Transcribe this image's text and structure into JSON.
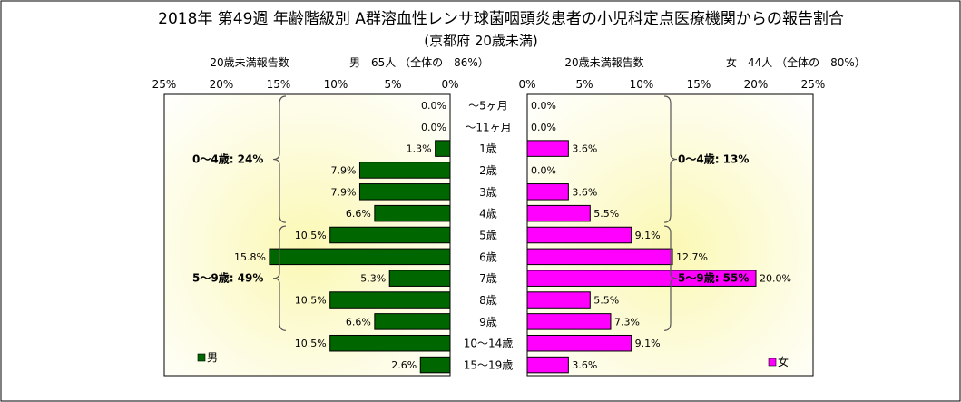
{
  "title": "2018年 第49週 年齢階級別 A群溶血性レンサ球菌咽頭炎患者の小児科定点医療機関からの報告割合",
  "subtitle": "(京都府 20歳未満)",
  "chart_data": {
    "type": "bar",
    "categories": [
      "〜5ヶ月",
      "〜11ヶ月",
      "1歳",
      "2歳",
      "3歳",
      "4歳",
      "5歳",
      "6歳",
      "7歳",
      "8歳",
      "9歳",
      "10〜14歳",
      "15〜19歳"
    ],
    "x_ticks": [
      "25%",
      "20%",
      "15%",
      "10%",
      "5%",
      "0%"
    ],
    "x_ticks_right": [
      "0%",
      "5%",
      "10%",
      "15%",
      "20%",
      "25%"
    ],
    "xlim": [
      0,
      25
    ],
    "series": [
      {
        "name": "男",
        "color": "#006600",
        "values": [
          0.0,
          0.0,
          1.3,
          7.9,
          7.9,
          6.6,
          10.5,
          15.8,
          5.3,
          10.5,
          6.6,
          10.5,
          2.6
        ],
        "labels": [
          "0.0%",
          "0.0%",
          "1.3%",
          "7.9%",
          "7.9%",
          "6.6%",
          "10.5%",
          "15.8%",
          "5.3%",
          "10.5%",
          "6.6%",
          "10.5%",
          "2.6%"
        ],
        "header_left": "20歳未満報告数",
        "header_right": "男　65人 （全体の　86%）",
        "groups": [
          {
            "label": "0〜4歳: 24%",
            "from": 0,
            "to": 5
          },
          {
            "label": "5〜9歳: 49%",
            "from": 6,
            "to": 10
          }
        ]
      },
      {
        "name": "女",
        "color": "#ff00ff",
        "values": [
          0.0,
          0.0,
          3.6,
          0.0,
          3.6,
          5.5,
          9.1,
          12.7,
          20.0,
          5.5,
          7.3,
          9.1,
          3.6
        ],
        "labels": [
          "0.0%",
          "0.0%",
          "3.6%",
          "0.0%",
          "3.6%",
          "5.5%",
          "9.1%",
          "12.7%",
          "20.0%",
          "5.5%",
          "7.3%",
          "9.1%",
          "3.6%"
        ],
        "header_left": "20歳未満報告数",
        "header_right": "女　44人 （全体の　80%）",
        "groups": [
          {
            "label": "0〜4歳: 13%",
            "from": 0,
            "to": 5
          },
          {
            "label": "5〜9歳: 55%",
            "from": 6,
            "to": 10
          }
        ]
      }
    ],
    "grid": false,
    "legend": "bottom-corners"
  }
}
